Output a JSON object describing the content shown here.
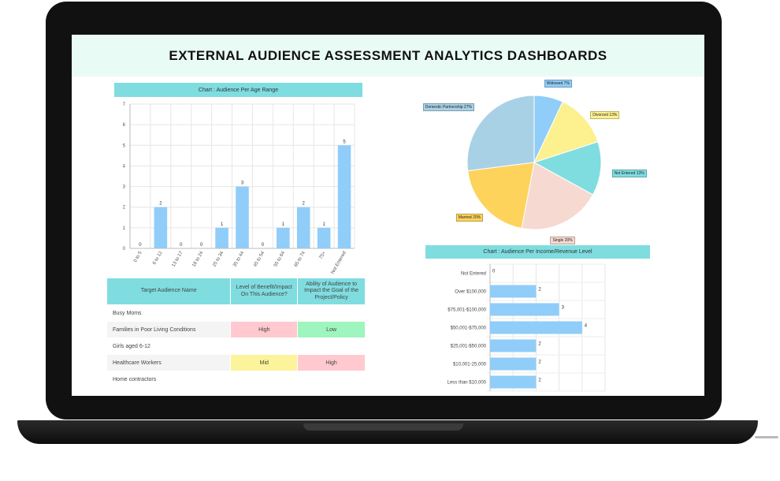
{
  "dashboard": {
    "title": "EXTERNAL AUDIENCE ASSESSMENT ANALYTICS DASHBOARDS"
  },
  "age_chart": {
    "header": "Chart : Audience Per Age Range"
  },
  "income_chart": {
    "header": "Chart : Audience Per Income/Revenue Level"
  },
  "chart_data": [
    {
      "type": "bar",
      "title": "Chart : Audience Per Age Range",
      "categories": [
        "0 to 5",
        "6 to 12",
        "13 to 17",
        "18 to 24",
        "25 to 34",
        "35 to 44",
        "45 to 54",
        "55 to 64",
        "65 to 74",
        "75+",
        "Not Entered"
      ],
      "values": [
        0,
        2,
        0,
        0,
        1,
        3,
        0,
        1,
        2,
        1,
        5
      ],
      "ylim": [
        0,
        7
      ],
      "yticks": [
        0,
        1,
        2,
        3,
        4,
        5,
        6,
        7
      ],
      "grid": true,
      "color": "#90cdf9"
    },
    {
      "type": "pie",
      "slices": [
        {
          "label": "Widowed 7%",
          "value": 7,
          "color": "#90cdf9"
        },
        {
          "label": "Divorced 13%",
          "value": 13,
          "color": "#fdf08e"
        },
        {
          "label": "Not Entered 13%",
          "value": 13,
          "color": "#7fdde0"
        },
        {
          "label": "Single 20%",
          "value": 20,
          "color": "#f6d9d0"
        },
        {
          "label": "Married 20%",
          "value": 20,
          "color": "#fdd35c"
        },
        {
          "label": "Domestic Partnership 27%",
          "value": 27,
          "color": "#a9d1e6"
        }
      ]
    },
    {
      "type": "bar",
      "orientation": "horizontal",
      "title": "Chart : Audience Per Income/Revenue Level",
      "categories": [
        "Not Entered",
        "Over $100,000",
        "$75,001-$100,000",
        "$50,001-$75,000",
        "$25,001-$50,000",
        "$10,001-25,000",
        "Less than $10,000"
      ],
      "values": [
        0,
        2,
        3,
        4,
        2,
        2,
        2
      ],
      "xlim": [
        0,
        5
      ],
      "grid": true,
      "color": "#90cdf9"
    }
  ],
  "audience_table": {
    "headers": [
      "Target Audience Name",
      "Level of Benefit/Impact On This Audience?",
      "Ability of Audience to Impact the Goal of the Project/Policy"
    ],
    "rows": [
      {
        "name": "Busy Moms",
        "benefit": "",
        "ability": ""
      },
      {
        "name": "Families in Poor Living Conditions",
        "benefit": "High",
        "ability": "Low"
      },
      {
        "name": "Girls aged 6-12",
        "benefit": "",
        "ability": ""
      },
      {
        "name": "Healthcare Workers",
        "benefit": "Mid",
        "ability": "High"
      },
      {
        "name": "Home contractors",
        "benefit": "",
        "ability": ""
      }
    ]
  }
}
